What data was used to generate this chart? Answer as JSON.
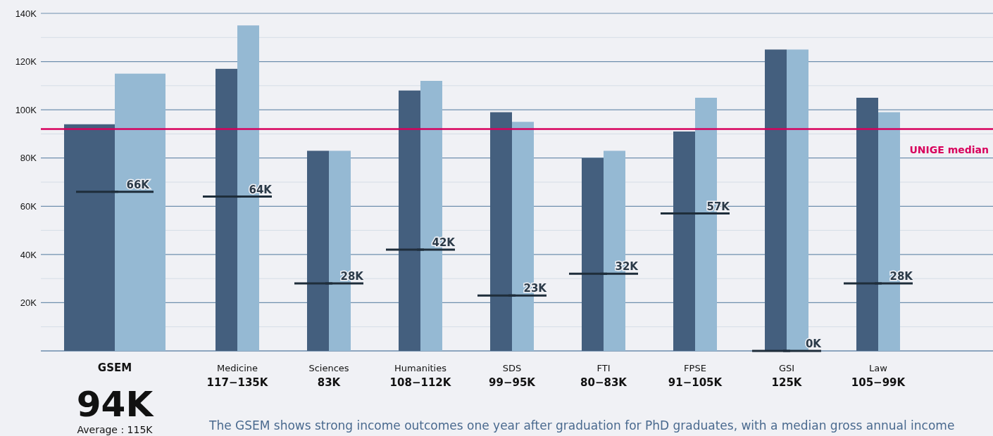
{
  "chart_data": {
    "type": "bar",
    "categories": [
      "GSEM",
      "Medicine",
      "Sciences",
      "Humanities",
      "SDS",
      "FTI",
      "FPSE",
      "GSI",
      "Law"
    ],
    "series": [
      {
        "color": "#445f7e",
        "values": [
          94000,
          117000,
          83000,
          108000,
          99000,
          80000,
          91000,
          125000,
          105000
        ]
      },
      {
        "color": "#95b9d3",
        "values": [
          115000,
          135000,
          83000,
          112000,
          95000,
          83000,
          105000,
          125000,
          99000
        ]
      },
      {
        "type": "scatter",
        "color": "#1e2d3a",
        "values": [
          66000,
          64000,
          28000,
          42000,
          23000,
          32000,
          57000,
          0,
          28000
        ],
        "value_labels": [
          "66K",
          "64K",
          "28K",
          "42K",
          "23K",
          "32K",
          "57K",
          "0K",
          "28K"
        ]
      }
    ],
    "ylim": [
      0,
      140000
    ],
    "yticks": [
      {
        "value": 0,
        "label": null
      },
      {
        "value": 10000,
        "label": null
      },
      {
        "value": 20000,
        "label": "20K"
      },
      {
        "value": 30000,
        "label": null
      },
      {
        "value": 40000,
        "label": "40K"
      },
      {
        "value": 50000,
        "label": null
      },
      {
        "value": 60000,
        "label": "60K"
      },
      {
        "value": 70000,
        "label": null
      },
      {
        "value": 80000,
        "label": "80K"
      },
      {
        "value": 90000,
        "label": null
      },
      {
        "value": 100000,
        "label": "100K"
      },
      {
        "value": 110000,
        "label": null
      },
      {
        "value": 120000,
        "label": "120K"
      },
      {
        "value": 130000,
        "label": null
      },
      {
        "value": 140000,
        "label": "140K"
      }
    ],
    "grid": "y",
    "ref_lines": [
      {
        "axis": "y",
        "value": 92000,
        "label": "UNIGE median",
        "color": "#d8005c"
      }
    ],
    "annotations": [
      "94K",
      "Average : 115K",
      "117−135K",
      "83K",
      "108−112K",
      "99−95K",
      "80−83K",
      "91−105K",
      "125K",
      "105−99K",
      "The GSEM shows strong income outcomes one year after graduation for PhD graduates, with a median gross annual income"
    ]
  }
}
